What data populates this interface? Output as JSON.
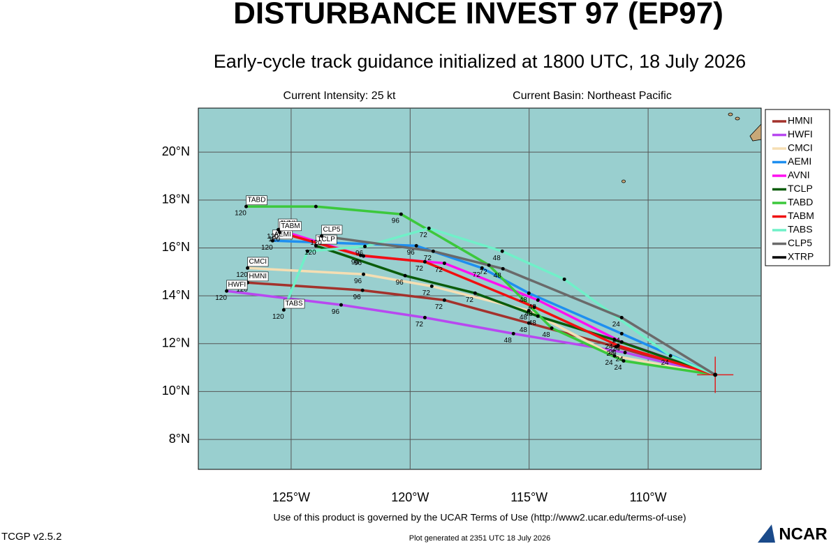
{
  "chart_data": {
    "type": "track",
    "title": "DISTURBANCE INVEST 97 (EP97)",
    "subtitle": "Early-cycle track guidance initialized at 1800 UTC, 18 July 2026",
    "info_left": "Current Intensity: 25 kt",
    "info_right": "Current Basin: Northeast Pacific",
    "footer": "Use of this product is governed by the UCAR Terms of Use (http://www2.ucar.edu/terms-of-use)",
    "version": "TCGP v2.5.2",
    "generated": "Plot generated at 2351 UTC   18 July 2026",
    "logo": "NCAR",
    "xlim": [
      -128.9,
      -105.25
    ],
    "ylim": [
      6.75,
      21.84
    ],
    "xticks": [
      {
        "value": -125,
        "label": "125°W"
      },
      {
        "value": -120,
        "label": "120°W"
      },
      {
        "value": -115,
        "label": "115°W"
      },
      {
        "value": -110,
        "label": "110°W"
      }
    ],
    "yticks": [
      {
        "value": 8,
        "label": "8°N"
      },
      {
        "value": 10,
        "label": "10°N"
      },
      {
        "value": 12,
        "label": "12°N"
      },
      {
        "value": 14,
        "label": "14°N"
      },
      {
        "value": 16,
        "label": "16°N"
      },
      {
        "value": 18,
        "label": "18°N"
      },
      {
        "value": 20,
        "label": "20°N"
      }
    ],
    "grid": true,
    "current_position": {
      "lon": -107.18,
      "lat": 10.7
    },
    "series": [
      {
        "name": "HMNI",
        "color": "#a3322c",
        "x": [
          -107.18,
          -111.35,
          -115.01,
          -118.56,
          -122.0,
          -126.83
        ],
        "values": [
          10.7,
          11.87,
          12.86,
          13.82,
          14.23,
          14.55
        ],
        "hour_labels": [
          null,
          24,
          48,
          72,
          96,
          120
        ]
      },
      {
        "name": "HWFI",
        "color": "#b848f0",
        "x": [
          -107.18,
          -110.97,
          -115.66,
          -119.38,
          -122.9,
          -127.71
        ],
        "values": [
          10.7,
          11.63,
          12.42,
          13.09,
          13.62,
          14.2
        ],
        "hour_labels": [
          null,
          24,
          48,
          72,
          96,
          120
        ]
      },
      {
        "name": "CMCI",
        "color": "#f5deb3",
        "x": [
          -107.18,
          -111.41,
          -115.01,
          -119.09,
          -121.96,
          -126.83
        ],
        "values": [
          10.7,
          11.49,
          13.38,
          14.4,
          14.9,
          15.16
        ],
        "hour_labels": [
          null,
          24,
          48,
          72,
          96,
          120
        ]
      },
      {
        "name": "AEMI",
        "color": "#1e8ff0",
        "x": [
          -107.18,
          -111.11,
          -115.01,
          -116.98,
          -119.74,
          -125.78
        ],
        "values": [
          10.7,
          12.42,
          14.11,
          15.16,
          16.09,
          16.3
        ],
        "hour_labels": [
          null,
          24,
          48,
          72,
          96,
          120
        ]
      },
      {
        "name": "AVNI",
        "color": "#ff10f0",
        "x": [
          -107.18,
          -111.11,
          -114.63,
          -118.56,
          -121.96,
          -125.54
        ],
        "values": [
          10.7,
          12.07,
          13.82,
          15.36,
          15.66,
          16.76
        ],
        "hour_labels": [
          null,
          24,
          48,
          72,
          96,
          120
        ]
      },
      {
        "name": "TCLP",
        "color": "#0a5c0a",
        "x": [
          -107.18,
          -111.41,
          -114.63,
          -117.27,
          -120.21,
          -123.96
        ],
        "values": [
          10.7,
          12.16,
          13.15,
          14.11,
          14.84,
          16.09
        ],
        "hour_labels": [
          null,
          24,
          48,
          72,
          96,
          120
        ]
      },
      {
        "name": "TABD",
        "color": "#3cc83c",
        "x": [
          -107.18,
          -111.03,
          -114.05,
          -116.69,
          -120.38,
          -123.96,
          -126.89
        ],
        "values": [
          10.7,
          11.28,
          12.65,
          15.28,
          17.41,
          17.73,
          17.73
        ],
        "hour_labels": [
          null,
          24,
          48,
          72,
          96,
          null,
          120
        ]
      },
      {
        "name": "TABM",
        "color": "#f01010",
        "x": [
          -107.18,
          -111.26,
          -114.78,
          -119.38,
          -122.08,
          -125.48
        ],
        "values": [
          10.7,
          11.92,
          13.53,
          15.42,
          15.69,
          16.65
        ],
        "hour_labels": [
          null,
          24,
          48,
          72,
          96,
          120
        ]
      },
      {
        "name": "TABS",
        "color": "#70f0c8",
        "x": [
          -107.18,
          -109.06,
          -113.52,
          -116.13,
          -119.21,
          -121.9,
          -124.31,
          -125.31
        ],
        "values": [
          10.7,
          11.49,
          14.69,
          15.86,
          16.82,
          16.06,
          15.86,
          13.41
        ],
        "hour_labels": [
          null,
          24,
          null,
          48,
          72,
          96,
          null,
          120
        ]
      },
      {
        "name": "CLP5",
        "color": "#6a6a6a",
        "x": [
          -107.18,
          -111.11,
          -116.1,
          -119.03,
          -123.72
        ],
        "values": [
          10.7,
          13.09,
          15.13,
          15.86,
          16.5
        ],
        "hour_labels": [
          null,
          24,
          48,
          72,
          120
        ]
      },
      {
        "name": "XTRP",
        "color": "#000000",
        "x": [
          -107.18
        ],
        "values": [
          10.7
        ],
        "hour_labels": [
          null
        ]
      }
    ]
  }
}
